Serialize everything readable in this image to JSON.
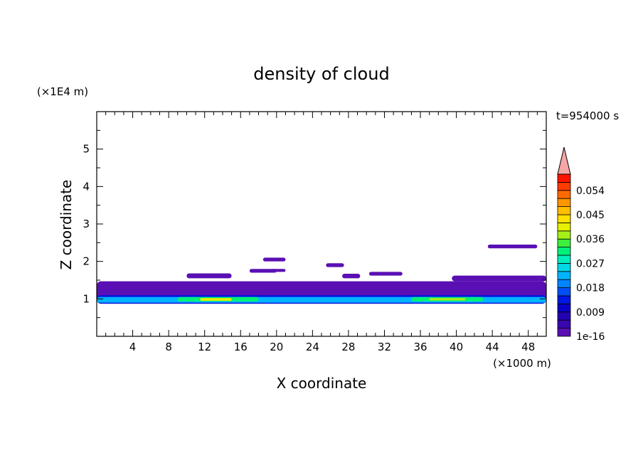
{
  "chart_data": {
    "type": "heatmap",
    "title": "density of cloud",
    "xlabel": "X coordinate",
    "ylabel": "Z coordinate",
    "x_unit_label": "(×1000 m)",
    "y_unit_label": "(×1E4 m)",
    "time_label": "t=954000 s",
    "xlim": [
      0,
      50
    ],
    "ylim": [
      0,
      6
    ],
    "x_ticks": [
      4,
      8,
      12,
      16,
      20,
      24,
      28,
      32,
      36,
      40,
      44,
      48
    ],
    "y_ticks": [
      1,
      2,
      3,
      4,
      5
    ],
    "colorbar": {
      "levels": [
        1e-16,
        0.003,
        0.006,
        0.009,
        0.012,
        0.015,
        0.018,
        0.021,
        0.024,
        0.027,
        0.03,
        0.033,
        0.036,
        0.039,
        0.042,
        0.045,
        0.048,
        0.051,
        0.054,
        0.057,
        0.06
      ],
      "labels": [
        "1e-16",
        "0.009",
        "0.018",
        "0.027",
        "0.036",
        "0.045",
        "0.054"
      ],
      "label_values": [
        1e-16,
        0.009,
        0.018,
        0.027,
        0.036,
        0.045,
        0.054
      ],
      "colors": [
        "#5a0fb4",
        "#3a06b0",
        "#2402b4",
        "#0a00c8",
        "#0018e0",
        "#0050f5",
        "#0084ff",
        "#00b4ff",
        "#00d8e6",
        "#00eebe",
        "#00f07a",
        "#3cf03c",
        "#a6f018",
        "#e6f000",
        "#ffe000",
        "#ffbe00",
        "#ff9600",
        "#ff6a00",
        "#ff3c00",
        "#ff1400"
      ],
      "extend_color": "#f6a6a6"
    },
    "regions": [
      {
        "x": [
          0,
          50
        ],
        "z": [
          0.87,
          1.47
        ],
        "density": 0.002
      },
      {
        "x": [
          0,
          50
        ],
        "z": [
          0.87,
          1.1
        ],
        "density": 0.012
      },
      {
        "x": [
          0,
          50
        ],
        "z": [
          0.9,
          1.05
        ],
        "density": 0.021
      },
      {
        "x": [
          9,
          18
        ],
        "z": [
          0.93,
          1.05
        ],
        "density": 0.03
      },
      {
        "x": [
          11.5,
          15
        ],
        "z": [
          0.95,
          1.02
        ],
        "density": 0.04
      },
      {
        "x": [
          35,
          43
        ],
        "z": [
          0.93,
          1.05
        ],
        "density": 0.03
      },
      {
        "x": [
          37,
          41
        ],
        "z": [
          0.96,
          1.02
        ],
        "density": 0.037
      },
      {
        "x": [
          10,
          15
        ],
        "z": [
          1.55,
          1.68
        ],
        "density": 0.001
      },
      {
        "x": [
          17,
          20
        ],
        "z": [
          1.7,
          1.8
        ],
        "density": 0.001
      },
      {
        "x": [
          18.5,
          21
        ],
        "z": [
          2.0,
          2.1
        ],
        "density": 0.001
      },
      {
        "x": [
          19.5,
          21
        ],
        "z": [
          1.72,
          1.8
        ],
        "density": 0.001
      },
      {
        "x": [
          25.5,
          27.5
        ],
        "z": [
          1.85,
          1.95
        ],
        "density": 0.001
      },
      {
        "x": [
          27.3,
          29.3
        ],
        "z": [
          1.55,
          1.67
        ],
        "density": 0.001
      },
      {
        "x": [
          30.3,
          34
        ],
        "z": [
          1.62,
          1.72
        ],
        "density": 0.001
      },
      {
        "x": [
          39.5,
          50
        ],
        "z": [
          1.47,
          1.62
        ],
        "density": 0.001
      },
      {
        "x": [
          43.5,
          49
        ],
        "z": [
          2.35,
          2.45
        ],
        "density": 0.001
      }
    ]
  }
}
